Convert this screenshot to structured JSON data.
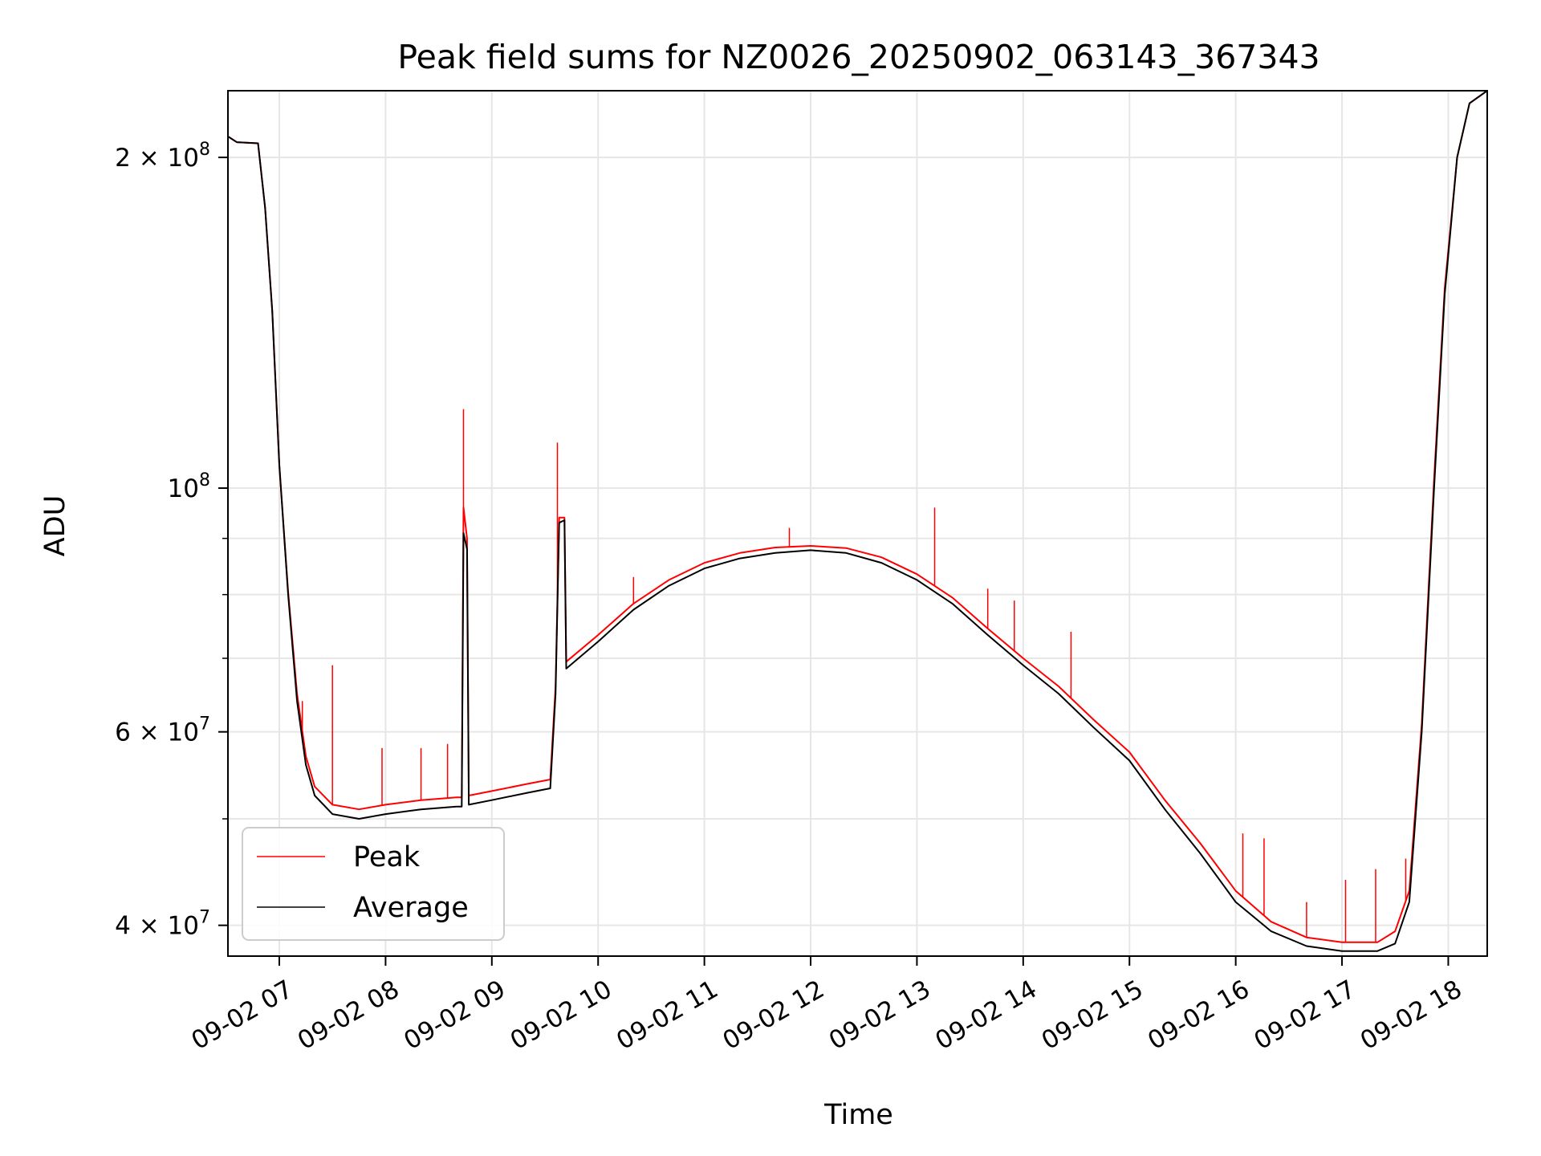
{
  "chart_data": {
    "type": "line",
    "title": "Peak field sums for NZ0026_20250902_063143_367343",
    "xlabel": "Time",
    "ylabel": "ADU",
    "y_scale": "log",
    "ylim": [
      37500000,
      230000000
    ],
    "xlim": [
      "2025-09-02 06:31",
      "2025-09-02 18:22"
    ],
    "grid": true,
    "legend_position": "lower-left",
    "x_tick_labels": [
      "09-02 07",
      "09-02 08",
      "09-02 09",
      "09-02 10",
      "09-02 11",
      "09-02 12",
      "09-02 13",
      "09-02 14",
      "09-02 15",
      "09-02 16",
      "09-02 17",
      "09-02 18"
    ],
    "x_ticks": [
      "2025-09-02 07:00",
      "2025-09-02 08:00",
      "2025-09-02 09:00",
      "2025-09-02 10:00",
      "2025-09-02 11:00",
      "2025-09-02 12:00",
      "2025-09-02 13:00",
      "2025-09-02 14:00",
      "2025-09-02 15:00",
      "2025-09-02 16:00",
      "2025-09-02 17:00",
      "2025-09-02 18:00"
    ],
    "y_ticks_major": [
      {
        "value": 200000000,
        "mantissa": "2 × 10",
        "exponent": "8"
      },
      {
        "value": 100000000,
        "mantissa": "10",
        "exponent": "8"
      },
      {
        "value": 60000000,
        "mantissa": "6 × 10",
        "exponent": "7"
      },
      {
        "value": 40000000,
        "mantissa": "4 × 10",
        "exponent": "7"
      }
    ],
    "y_ticks_minor": [
      50000000,
      70000000,
      80000000,
      90000000
    ],
    "series": [
      {
        "name": "Average",
        "color": "#000000",
        "points": [
          [
            "2025-09-02 06:31",
            209000000
          ],
          [
            "2025-09-02 06:36",
            206500000
          ],
          [
            "2025-09-02 06:48",
            206000000
          ],
          [
            "2025-09-02 06:52",
            180000000
          ],
          [
            "2025-09-02 06:56",
            145000000
          ],
          [
            "2025-09-02 07:00",
            105000000
          ],
          [
            "2025-09-02 07:05",
            80000000
          ],
          [
            "2025-09-02 07:10",
            64000000
          ],
          [
            "2025-09-02 07:15",
            56000000
          ],
          [
            "2025-09-02 07:20",
            52500000
          ],
          [
            "2025-09-02 07:30",
            50500000
          ],
          [
            "2025-09-02 07:45",
            50000000
          ],
          [
            "2025-09-02 08:00",
            50500000
          ],
          [
            "2025-09-02 08:20",
            51000000
          ],
          [
            "2025-09-02 08:40",
            51300000
          ],
          [
            "2025-09-02 08:43",
            51300000
          ],
          [
            "2025-09-02 08:44",
            91000000
          ],
          [
            "2025-09-02 08:46",
            88000000
          ],
          [
            "2025-09-02 08:47",
            51500000
          ],
          [
            "2025-09-02 09:00",
            52000000
          ],
          [
            "2025-09-02 09:20",
            52800000
          ],
          [
            "2025-09-02 09:33",
            53300000
          ],
          [
            "2025-09-02 09:36",
            65000000
          ],
          [
            "2025-09-02 09:38",
            93000000
          ],
          [
            "2025-09-02 09:41",
            93500000
          ],
          [
            "2025-09-02 09:42",
            68500000
          ],
          [
            "2025-09-02 10:00",
            72500000
          ],
          [
            "2025-09-02 10:20",
            77500000
          ],
          [
            "2025-09-02 10:40",
            81500000
          ],
          [
            "2025-09-02 11:00",
            84500000
          ],
          [
            "2025-09-02 11:20",
            86300000
          ],
          [
            "2025-09-02 11:40",
            87300000
          ],
          [
            "2025-09-02 12:00",
            87800000
          ],
          [
            "2025-09-02 12:20",
            87300000
          ],
          [
            "2025-09-02 12:40",
            85500000
          ],
          [
            "2025-09-02 13:00",
            82500000
          ],
          [
            "2025-09-02 13:20",
            78500000
          ],
          [
            "2025-09-02 13:40",
            73500000
          ],
          [
            "2025-09-02 14:00",
            69000000
          ],
          [
            "2025-09-02 14:20",
            65000000
          ],
          [
            "2025-09-02 14:40",
            60500000
          ],
          [
            "2025-09-02 15:00",
            56500000
          ],
          [
            "2025-09-02 15:20",
            51000000
          ],
          [
            "2025-09-02 15:40",
            46500000
          ],
          [
            "2025-09-02 16:00",
            42000000
          ],
          [
            "2025-09-02 16:20",
            39500000
          ],
          [
            "2025-09-02 16:40",
            38300000
          ],
          [
            "2025-09-02 17:00",
            37900000
          ],
          [
            "2025-09-02 17:20",
            37900000
          ],
          [
            "2025-09-02 17:30",
            38500000
          ],
          [
            "2025-09-02 17:38",
            42000000
          ],
          [
            "2025-09-02 17:45",
            60000000
          ],
          [
            "2025-09-02 17:52",
            100000000
          ],
          [
            "2025-09-02 17:58",
            150000000
          ],
          [
            "2025-09-02 18:05",
            200000000
          ],
          [
            "2025-09-02 18:12",
            224000000
          ],
          [
            "2025-09-02 18:22",
            230000000
          ]
        ]
      },
      {
        "name": "Peak",
        "color": "#ff0000",
        "points": [
          [
            "2025-09-02 06:31",
            209000000
          ],
          [
            "2025-09-02 06:36",
            206500000
          ],
          [
            "2025-09-02 06:48",
            206000000
          ],
          [
            "2025-09-02 06:52",
            180000000
          ],
          [
            "2025-09-02 06:56",
            145000000
          ],
          [
            "2025-09-02 07:00",
            105000000
          ],
          [
            "2025-09-02 07:05",
            80500000
          ],
          [
            "2025-09-02 07:10",
            65000000
          ],
          [
            "2025-09-02 07:15",
            57000000
          ],
          [
            "2025-09-02 07:20",
            53500000
          ],
          [
            "2025-09-02 07:30",
            51500000
          ],
          [
            "2025-09-02 07:45",
            51000000
          ],
          [
            "2025-09-02 08:00",
            51500000
          ],
          [
            "2025-09-02 08:20",
            52000000
          ],
          [
            "2025-09-02 08:40",
            52300000
          ],
          [
            "2025-09-02 08:43",
            52300000
          ],
          [
            "2025-09-02 08:44",
            96000000
          ],
          [
            "2025-09-02 08:46",
            90000000
          ],
          [
            "2025-09-02 08:47",
            52500000
          ],
          [
            "2025-09-02 09:00",
            53000000
          ],
          [
            "2025-09-02 09:20",
            53800000
          ],
          [
            "2025-09-02 09:33",
            54300000
          ],
          [
            "2025-09-02 09:36",
            66000000
          ],
          [
            "2025-09-02 09:38",
            94000000
          ],
          [
            "2025-09-02 09:41",
            94000000
          ],
          [
            "2025-09-02 09:42",
            69500000
          ],
          [
            "2025-09-02 10:00",
            73500000
          ],
          [
            "2025-09-02 10:20",
            78500000
          ],
          [
            "2025-09-02 10:40",
            82500000
          ],
          [
            "2025-09-02 11:00",
            85500000
          ],
          [
            "2025-09-02 11:20",
            87300000
          ],
          [
            "2025-09-02 11:40",
            88300000
          ],
          [
            "2025-09-02 12:00",
            88600000
          ],
          [
            "2025-09-02 12:20",
            88200000
          ],
          [
            "2025-09-02 12:40",
            86500000
          ],
          [
            "2025-09-02 13:00",
            83500000
          ],
          [
            "2025-09-02 13:20",
            79500000
          ],
          [
            "2025-09-02 13:40",
            74500000
          ],
          [
            "2025-09-02 14:00",
            70000000
          ],
          [
            "2025-09-02 14:20",
            66000000
          ],
          [
            "2025-09-02 14:40",
            61500000
          ],
          [
            "2025-09-02 15:00",
            57500000
          ],
          [
            "2025-09-02 15:20",
            52000000
          ],
          [
            "2025-09-02 15:40",
            47500000
          ],
          [
            "2025-09-02 16:00",
            43000000
          ],
          [
            "2025-09-02 16:20",
            40300000
          ],
          [
            "2025-09-02 16:40",
            39000000
          ],
          [
            "2025-09-02 17:00",
            38600000
          ],
          [
            "2025-09-02 17:20",
            38600000
          ],
          [
            "2025-09-02 17:30",
            39500000
          ],
          [
            "2025-09-02 17:38",
            43000000
          ],
          [
            "2025-09-02 17:45",
            61000000
          ],
          [
            "2025-09-02 17:52",
            102000000
          ],
          [
            "2025-09-02 17:58",
            152000000
          ],
          [
            "2025-09-02 18:05",
            200000000
          ],
          [
            "2025-09-02 18:12",
            224000000
          ],
          [
            "2025-09-02 18:22",
            230000000
          ]
        ],
        "spikes": [
          [
            "2025-09-02 07:13",
            64000000
          ],
          [
            "2025-09-02 07:30",
            69000000
          ],
          [
            "2025-09-02 07:58",
            58000000
          ],
          [
            "2025-09-02 08:20",
            58000000
          ],
          [
            "2025-09-02 08:35",
            58500000
          ],
          [
            "2025-09-02 08:44",
            118000000
          ],
          [
            "2025-09-02 09:37",
            110000000
          ],
          [
            "2025-09-02 10:20",
            83000000
          ],
          [
            "2025-09-02 11:48",
            92000000
          ],
          [
            "2025-09-02 13:10",
            96000000
          ],
          [
            "2025-09-02 13:40",
            81000000
          ],
          [
            "2025-09-02 13:55",
            79000000
          ],
          [
            "2025-09-02 14:27",
            74000000
          ],
          [
            "2025-09-02 15:20",
            52000000
          ],
          [
            "2025-09-02 16:04",
            48500000
          ],
          [
            "2025-09-02 16:16",
            48000000
          ],
          [
            "2025-09-02 16:40",
            42000000
          ],
          [
            "2025-09-02 17:02",
            44000000
          ],
          [
            "2025-09-02 17:19",
            45000000
          ],
          [
            "2025-09-02 17:36",
            46000000
          ]
        ]
      }
    ],
    "legend": [
      {
        "label": "Peak",
        "color": "#ff0000"
      },
      {
        "label": "Average",
        "color": "#000000"
      }
    ]
  }
}
